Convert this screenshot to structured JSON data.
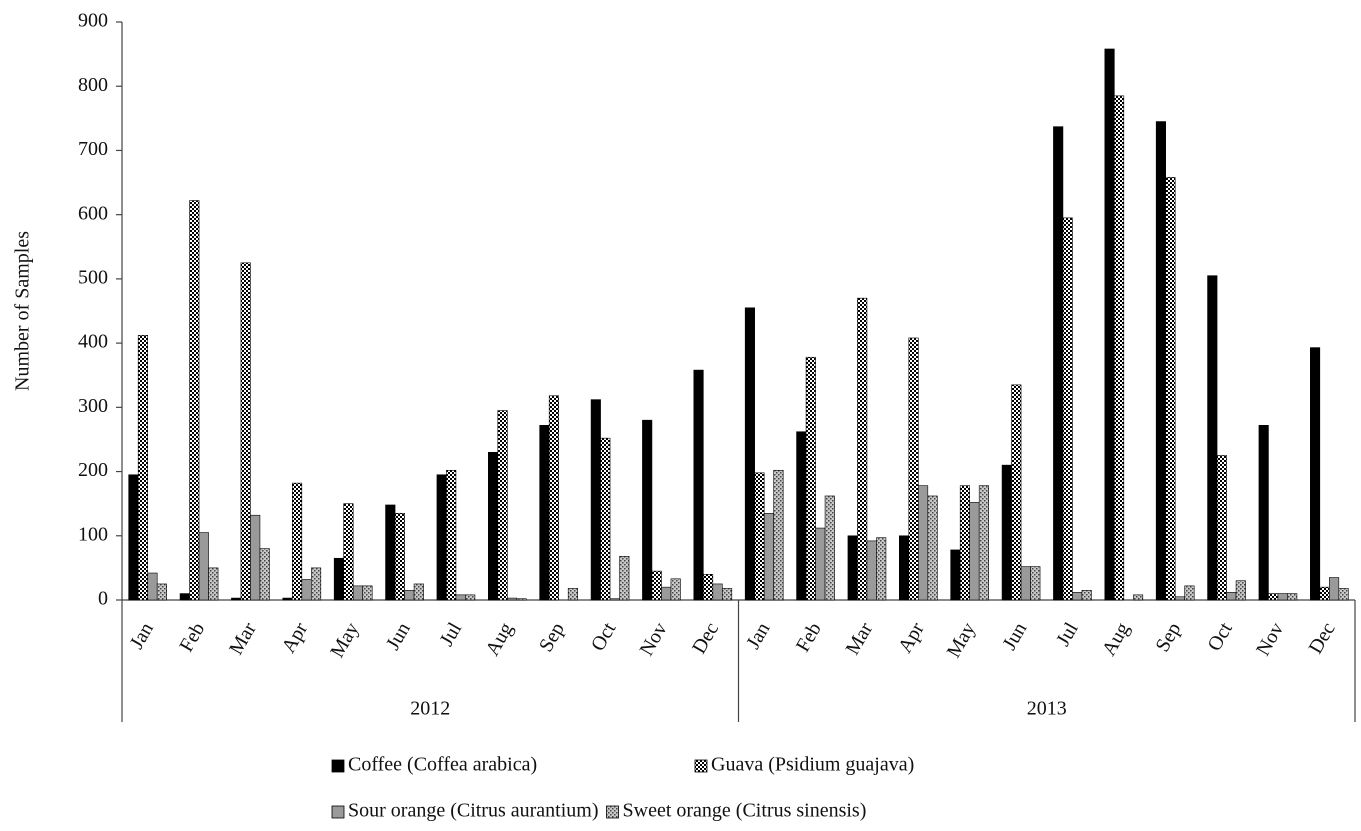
{
  "chart_data": {
    "type": "bar",
    "y_label": "Number of Samples",
    "groups": [
      {
        "name": "2012",
        "categories": [
          "Jan",
          "Feb",
          "Mar",
          "Apr",
          "May",
          "Jun",
          "Jul",
          "Aug",
          "Sep",
          "Oct",
          "Nov",
          "Dec"
        ]
      },
      {
        "name": "2013",
        "categories": [
          "Jan",
          "Feb",
          "Mar",
          "Apr",
          "May",
          "Jun",
          "Jul",
          "Aug",
          "Sep",
          "Oct",
          "Nov",
          "Dec"
        ]
      }
    ],
    "series": [
      {
        "name": "Coffee (Coffea arabica)",
        "color": "#000000",
        "values": [
          195,
          10,
          3,
          3,
          65,
          148,
          195,
          230,
          272,
          312,
          280,
          358,
          455,
          262,
          100,
          100,
          78,
          210,
          737,
          858,
          745,
          505,
          272,
          393
        ]
      },
      {
        "name": "Guava (Psidium guajava)",
        "color": "#ffffff",
        "pattern": "checker",
        "values": [
          412,
          622,
          525,
          182,
          150,
          135,
          202,
          295,
          318,
          252,
          45,
          40,
          198,
          378,
          470,
          408,
          178,
          335,
          595,
          785,
          658,
          225,
          10,
          20
        ]
      },
      {
        "name": "Sour orange (Citrus aurantium)",
        "color": "#9a9a9a",
        "values": [
          42,
          105,
          132,
          32,
          22,
          15,
          8,
          3,
          0,
          2,
          20,
          25,
          135,
          112,
          92,
          178,
          152,
          52,
          12,
          0,
          5,
          12,
          10,
          35
        ]
      },
      {
        "name": "Sweet orange (Citrus sinensis)",
        "color": "#c8c8c8",
        "pattern": "dots",
        "values": [
          25,
          50,
          80,
          50,
          22,
          25,
          8,
          2,
          18,
          68,
          33,
          18,
          202,
          162,
          97,
          162,
          178,
          52,
          15,
          8,
          22,
          30,
          10,
          18
        ]
      }
    ],
    "ylim": [
      0,
      900
    ],
    "yticks": [
      0,
      100,
      200,
      300,
      400,
      500,
      600,
      700,
      800,
      900
    ],
    "grid": false
  }
}
